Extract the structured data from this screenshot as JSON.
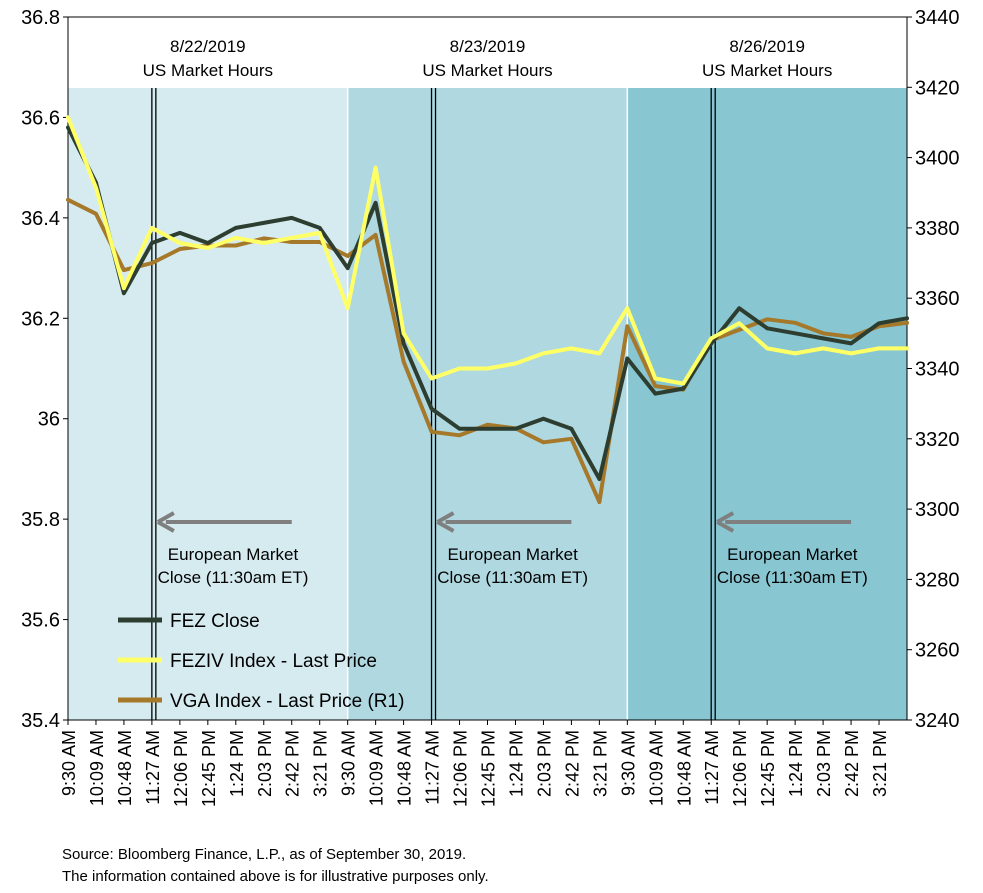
{
  "chart_data": {
    "type": "line",
    "title": "",
    "xlabel": "",
    "ylabel": "",
    "ylim": [
      35.4,
      36.8
    ],
    "y2lim": [
      3240,
      3440
    ],
    "yticks": [
      "35.4",
      "35.6",
      "35.8",
      "36",
      "36.2",
      "36.4",
      "36.6",
      "36.8"
    ],
    "y2ticks": [
      "3240",
      "3260",
      "3280",
      "3300",
      "3320",
      "3340",
      "3360",
      "3380",
      "3400",
      "3420",
      "3440"
    ],
    "x_tick_labels": [
      "9:30 AM",
      "10:09 AM",
      "10:48 AM",
      "11:27 AM",
      "12:06 PM",
      "12:45 PM",
      "1:24 PM",
      "2:03 PM",
      "2:42 PM",
      "3:21 PM",
      "9:30 AM",
      "10:09 AM",
      "10:48 AM",
      "11:27 AM",
      "12:06 PM",
      "12:45 PM",
      "1:24 PM",
      "2:03 PM",
      "2:42 PM",
      "3:21 PM",
      "9:30 AM",
      "10:09 AM",
      "10:48 AM",
      "11:27 AM",
      "12:06 PM",
      "12:45 PM",
      "1:24 PM",
      "2:03 PM",
      "2:42 PM",
      "3:21 PM"
    ],
    "x_points": 31,
    "days": [
      {
        "date": "8/22/2019",
        "label": "US Market Hours",
        "shade": "#d6ebf0",
        "annotation_line1": "European Market",
        "annotation_line2": "Close (11:30am ET)"
      },
      {
        "date": "8/23/2019",
        "label": "US Market Hours",
        "shade": "#afd8e1",
        "annotation_line1": "European Market",
        "annotation_line2": "Close (11:30am ET)"
      },
      {
        "date": "8/26/2019",
        "label": "US Market Hours",
        "shade": "#88c6d2",
        "annotation_line1": "European Market",
        "annotation_line2": "Close (11:30am ET)"
      }
    ],
    "series": [
      {
        "name": "FEZ Close",
        "axis": "left",
        "color": "#2d3e30",
        "values": [
          36.58,
          36.47,
          36.25,
          36.35,
          36.37,
          36.35,
          36.38,
          36.39,
          36.4,
          36.38,
          36.3,
          36.43,
          36.15,
          36.02,
          35.98,
          35.98,
          35.98,
          36.0,
          35.98,
          35.88,
          36.12,
          36.05,
          36.06,
          36.15,
          36.22,
          36.18,
          36.17,
          36.16,
          36.15,
          36.19,
          36.2
        ]
      },
      {
        "name": "FEZIV Index - Last Price",
        "axis": "left",
        "color": "#ffff66",
        "values": [
          36.6,
          36.46,
          36.26,
          36.38,
          36.35,
          36.34,
          36.36,
          36.35,
          36.36,
          36.37,
          36.22,
          36.5,
          36.17,
          36.08,
          36.1,
          36.1,
          36.11,
          36.13,
          36.14,
          36.13,
          36.22,
          36.08,
          36.07,
          36.16,
          36.19,
          36.14,
          36.13,
          36.14,
          36.13,
          36.14,
          36.14
        ]
      },
      {
        "name": "VGA Index - Last Price (R1)",
        "axis": "right",
        "color": "#a6782a",
        "values": [
          3388,
          3384,
          3368,
          3370,
          3374,
          3375,
          3375,
          3377,
          3376,
          3376,
          3372,
          3378,
          3342,
          3322,
          3321,
          3324,
          3323,
          3319,
          3320,
          3302,
          3352,
          3335,
          3334,
          3348,
          3351,
          3354,
          3353,
          3350,
          3349,
          3352,
          3353
        ]
      }
    ]
  },
  "source_line1": "Source: Bloomberg Finance, L.P., as of September 30, 2019.",
  "source_line2": "The information contained above is for illustrative purposes only."
}
